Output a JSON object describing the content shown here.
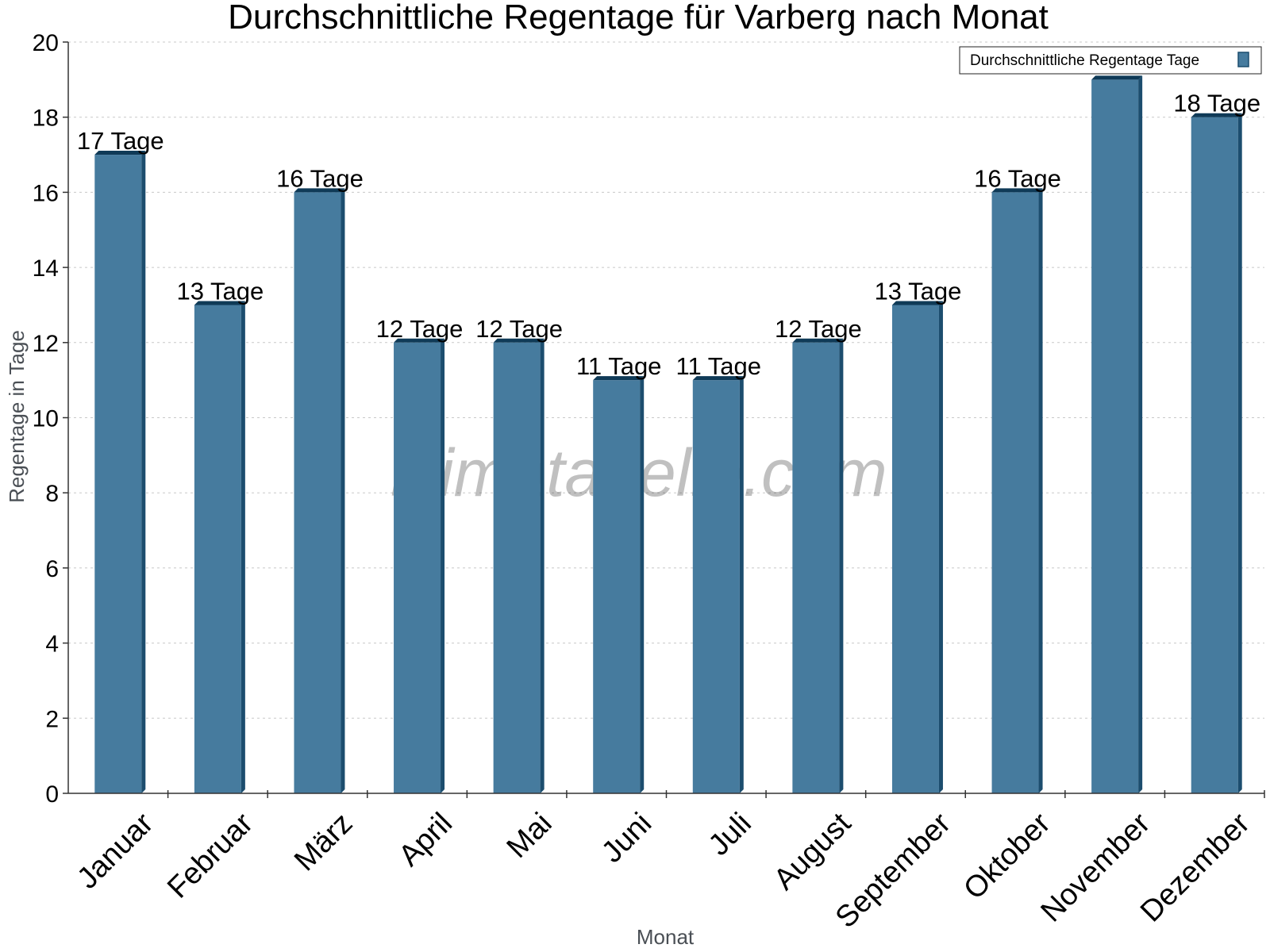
{
  "chart_data": {
    "type": "bar",
    "title": "Durchschnittliche Regentage für Varberg nach Monat",
    "xlabel": "Monat",
    "ylabel": "Regentage in Tage",
    "ylim": [
      0,
      20
    ],
    "yticks": [
      0,
      2,
      4,
      6,
      8,
      10,
      12,
      14,
      16,
      18,
      20
    ],
    "grid": true,
    "legend_position": "top-right",
    "categories": [
      "Januar",
      "Februar",
      "März",
      "April",
      "Mai",
      "Juni",
      "Juli",
      "August",
      "September",
      "Oktober",
      "November",
      "Dezember"
    ],
    "series": [
      {
        "name": "Durchschnittliche Regentage Tage",
        "values": [
          17,
          13,
          16,
          12,
          12,
          11,
          11,
          12,
          13,
          16,
          19,
          18
        ],
        "color": "#467b9e",
        "side_color": "#1c4d6e",
        "top_color": "#0f3a57"
      }
    ],
    "data_labels": [
      "17 Tage",
      "13 Tage",
      "16 Tage",
      "12 Tage",
      "12 Tage",
      "11 Tage",
      "11 Tage",
      "12 Tage",
      "13 Tage",
      "16 Tage",
      "",
      "18 Tage"
    ],
    "watermark": "klimatabelle.com"
  }
}
